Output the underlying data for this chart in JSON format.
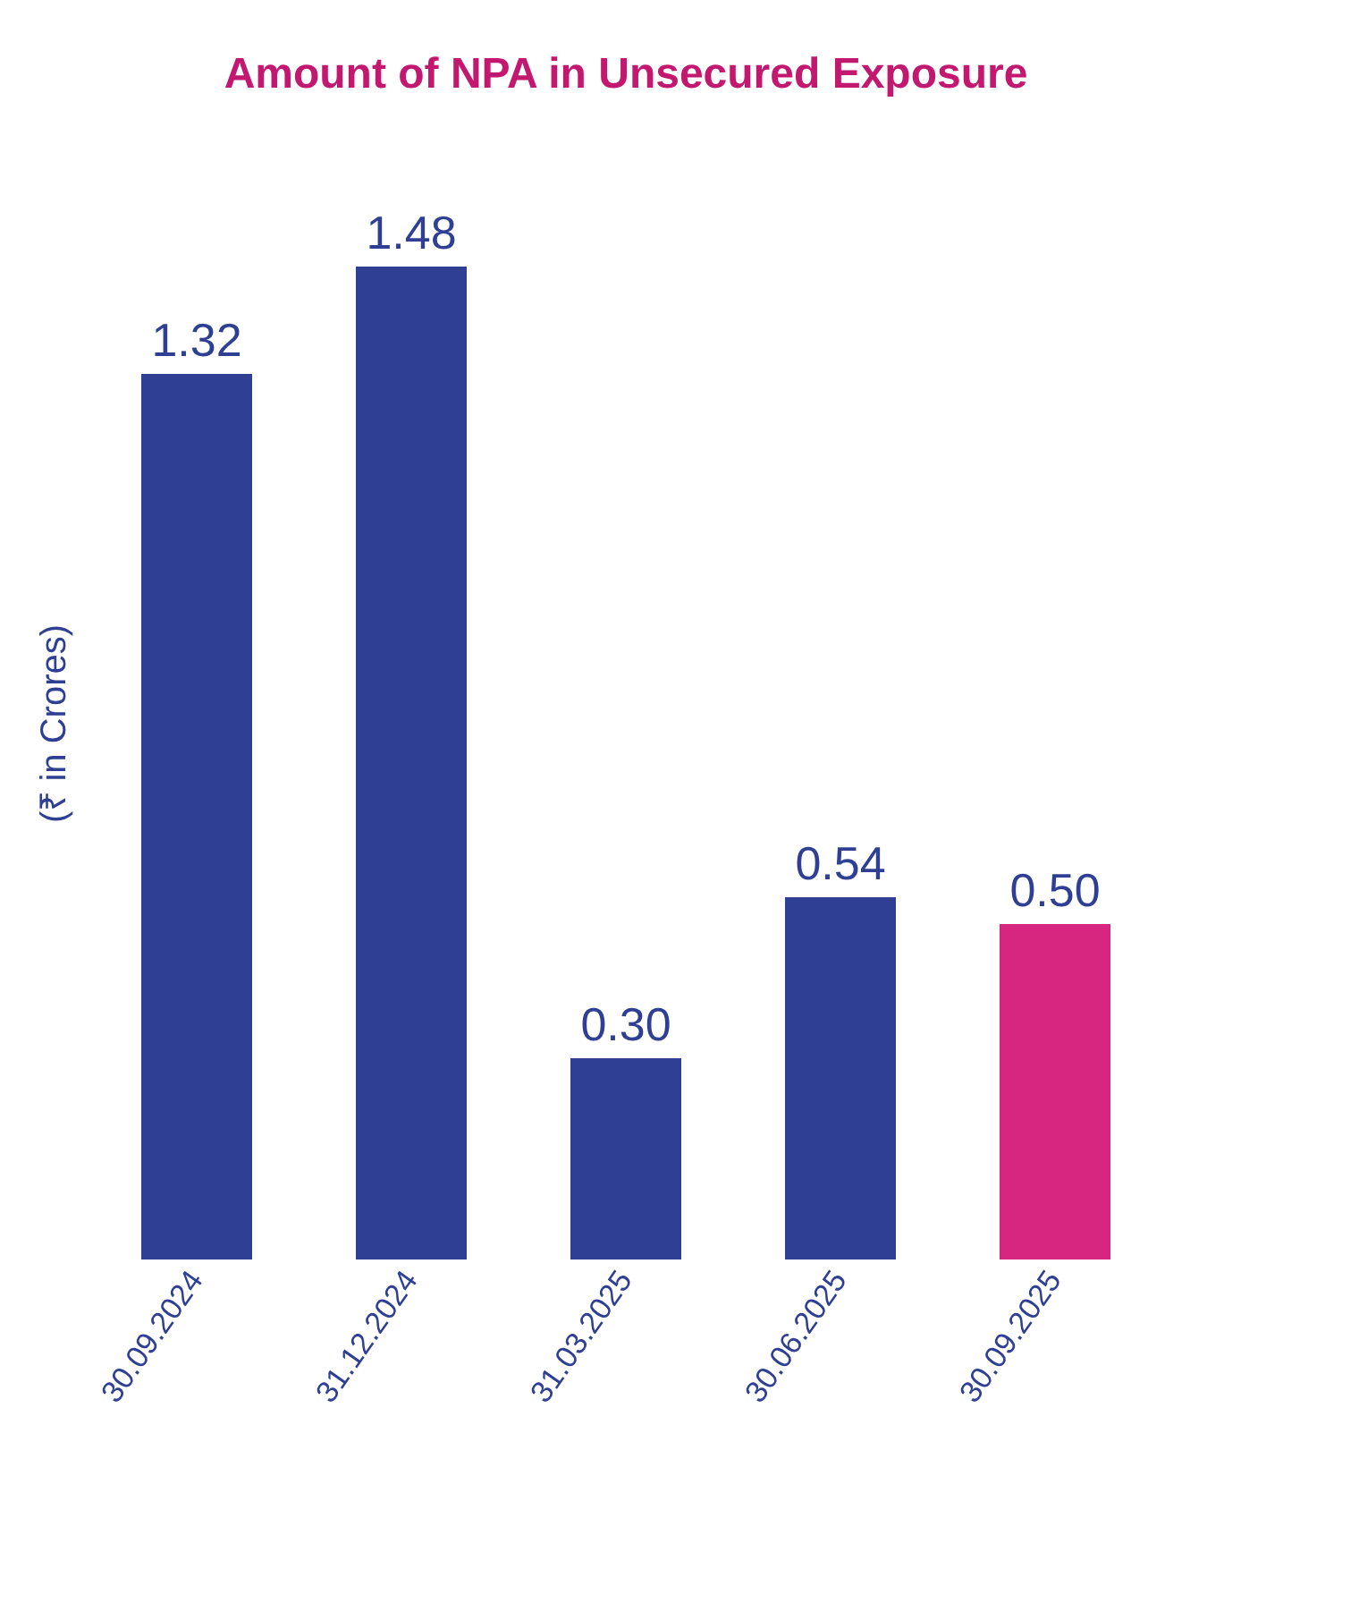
{
  "chart_data": {
    "type": "bar",
    "title": "Amount of NPA in Unsecured Exposure",
    "ylabel": "(₹ in Crores)",
    "categories": [
      "30.09.2024",
      "31.12.2024",
      "31.03.2025",
      "30.06.2025",
      "30.09.2025"
    ],
    "values": [
      1.32,
      1.48,
      0.3,
      0.54,
      0.5
    ],
    "value_labels": [
      "1.32",
      "1.48",
      "0.30",
      "0.54",
      "0.50"
    ],
    "colors": [
      "#2e3f94",
      "#2e3f94",
      "#2e3f94",
      "#2e3f94",
      "#d6267f"
    ],
    "tick_labels": "x",
    "grid": false
  }
}
